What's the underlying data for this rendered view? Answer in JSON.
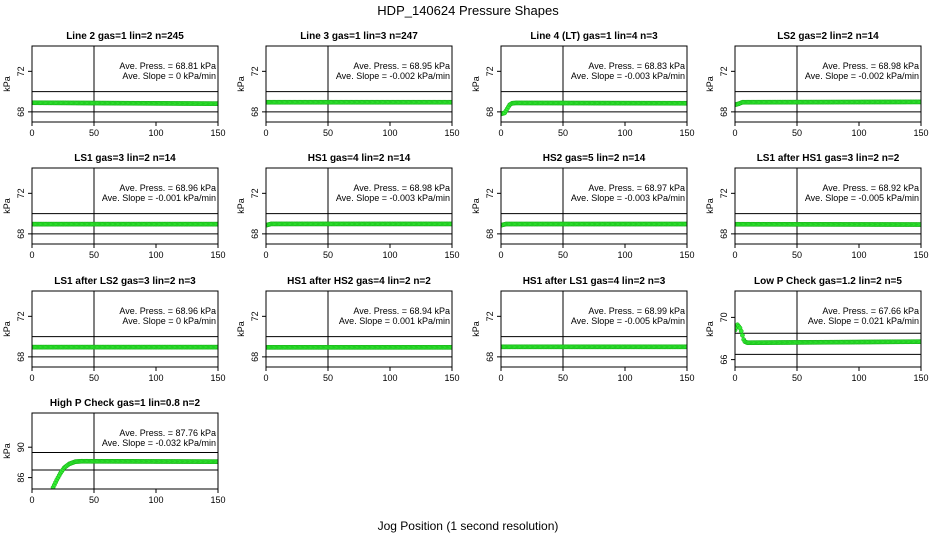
{
  "figure": {
    "title": "HDP_140624  Pressure Shapes",
    "xlabel": "Jog Position (1 second resolution)"
  },
  "chart_data": [
    {
      "type": "line",
      "title": "Line 2 gas=1 lin=2 n=245",
      "ylabel": "kPa",
      "xlim": [
        0,
        150
      ],
      "ylim": [
        67,
        74.5
      ],
      "xticks": [
        0,
        50,
        100,
        150
      ],
      "yticks": [
        68,
        72
      ],
      "ref_h": [
        68,
        70
      ],
      "ref_v": 50,
      "annotation": [
        "Ave. Press. = 68.81 kPa",
        "Ave. Slope = 0 kPa/min"
      ],
      "x": [
        0,
        150
      ],
      "y": [
        68.9,
        68.81
      ]
    },
    {
      "type": "line",
      "title": "Line 3 gas=1 lin=3 n=247",
      "ylabel": "kPa",
      "xlim": [
        0,
        150
      ],
      "ylim": [
        67,
        74.5
      ],
      "xticks": [
        0,
        50,
        100,
        150
      ],
      "yticks": [
        68,
        72
      ],
      "ref_h": [
        68,
        70
      ],
      "ref_v": 50,
      "annotation": [
        "Ave. Press. = 68.95 kPa",
        "Ave. Slope = -0.002 kPa/min"
      ],
      "x": [
        0,
        150
      ],
      "y": [
        68.95,
        68.95
      ]
    },
    {
      "type": "line",
      "title": "Line 4 (LT) gas=1 lin=4 n=3",
      "ylabel": "kPa",
      "xlim": [
        0,
        150
      ],
      "ylim": [
        67,
        74.5
      ],
      "xticks": [
        0,
        50,
        100,
        150
      ],
      "yticks": [
        68,
        72
      ],
      "ref_h": [
        68,
        70
      ],
      "ref_v": 50,
      "annotation": [
        "Ave. Press. = 68.83 kPa",
        "Ave. Slope = -0.003 kPa/min"
      ],
      "x": [
        0,
        3,
        5,
        7,
        9,
        12,
        150
      ],
      "y": [
        67.8,
        67.9,
        68.3,
        68.7,
        68.85,
        68.88,
        68.85
      ]
    },
    {
      "type": "line",
      "title": "LS2 gas=2 lin=2 n=14",
      "ylabel": "kPa",
      "xlim": [
        0,
        150
      ],
      "ylim": [
        67,
        74.5
      ],
      "xticks": [
        0,
        50,
        100,
        150
      ],
      "yticks": [
        68,
        72
      ],
      "ref_h": [
        68,
        70
      ],
      "ref_v": 50,
      "annotation": [
        "Ave. Press. = 68.98 kPa",
        "Ave. Slope = -0.002 kPa/min"
      ],
      "x": [
        0,
        3,
        6,
        150
      ],
      "y": [
        68.7,
        68.8,
        68.95,
        68.98
      ]
    },
    {
      "type": "line",
      "title": "LS1 gas=3 lin=2 n=14",
      "ylabel": "kPa",
      "xlim": [
        0,
        150
      ],
      "ylim": [
        67,
        74.5
      ],
      "xticks": [
        0,
        50,
        100,
        150
      ],
      "yticks": [
        68,
        72
      ],
      "ref_h": [
        68,
        70
      ],
      "ref_v": 50,
      "annotation": [
        "Ave. Press. = 68.96 kPa",
        "Ave. Slope = -0.001 kPa/min"
      ],
      "x": [
        0,
        150
      ],
      "y": [
        68.96,
        68.96
      ]
    },
    {
      "type": "line",
      "title": "HS1 gas=4 lin=2 n=14",
      "ylabel": "kPa",
      "xlim": [
        0,
        150
      ],
      "ylim": [
        67,
        74.5
      ],
      "xticks": [
        0,
        50,
        100,
        150
      ],
      "yticks": [
        68,
        72
      ],
      "ref_h": [
        68,
        70
      ],
      "ref_v": 50,
      "annotation": [
        "Ave. Press. = 68.98 kPa",
        "Ave. Slope = -0.003 kPa/min"
      ],
      "x": [
        0,
        4,
        150
      ],
      "y": [
        68.85,
        68.98,
        68.98
      ]
    },
    {
      "type": "line",
      "title": "HS2 gas=5 lin=2 n=14",
      "ylabel": "kPa",
      "xlim": [
        0,
        150
      ],
      "ylim": [
        67,
        74.5
      ],
      "xticks": [
        0,
        50,
        100,
        150
      ],
      "yticks": [
        68,
        72
      ],
      "ref_h": [
        68,
        70
      ],
      "ref_v": 50,
      "annotation": [
        "Ave. Press. = 68.97 kPa",
        "Ave. Slope = -0.003 kPa/min"
      ],
      "x": [
        0,
        4,
        150
      ],
      "y": [
        68.85,
        68.97,
        68.97
      ]
    },
    {
      "type": "line",
      "title": "LS1 after HS1 gas=3 lin=2 n=2",
      "ylabel": "kPa",
      "xlim": [
        0,
        150
      ],
      "ylim": [
        67,
        74.5
      ],
      "xticks": [
        0,
        50,
        100,
        150
      ],
      "yticks": [
        68,
        72
      ],
      "ref_h": [
        68,
        70
      ],
      "ref_v": 50,
      "annotation": [
        "Ave. Press. = 68.92 kPa",
        "Ave. Slope = -0.005 kPa/min"
      ],
      "x": [
        0,
        150
      ],
      "y": [
        68.95,
        68.92
      ]
    },
    {
      "type": "line",
      "title": "LS1 after LS2 gas=3 lin=2 n=3",
      "ylabel": "kPa",
      "xlim": [
        0,
        150
      ],
      "ylim": [
        67,
        74.5
      ],
      "xticks": [
        0,
        50,
        100,
        150
      ],
      "yticks": [
        68,
        72
      ],
      "ref_h": [
        68,
        70
      ],
      "ref_v": 50,
      "annotation": [
        "Ave. Press. = 68.96 kPa",
        "Ave. Slope = 0 kPa/min"
      ],
      "x": [
        0,
        150
      ],
      "y": [
        68.96,
        68.96
      ]
    },
    {
      "type": "line",
      "title": "HS1 after HS2 gas=4 lin=2 n=2",
      "ylabel": "kPa",
      "xlim": [
        0,
        150
      ],
      "ylim": [
        67,
        74.5
      ],
      "xticks": [
        0,
        50,
        100,
        150
      ],
      "yticks": [
        68,
        72
      ],
      "ref_h": [
        68,
        70
      ],
      "ref_v": 50,
      "annotation": [
        "Ave. Press. = 68.94 kPa",
        "Ave. Slope = 0.001 kPa/min"
      ],
      "x": [
        0,
        150
      ],
      "y": [
        68.94,
        68.94
      ]
    },
    {
      "type": "line",
      "title": "HS1 after LS1 gas=4 lin=2 n=3",
      "ylabel": "kPa",
      "xlim": [
        0,
        150
      ],
      "ylim": [
        67,
        74.5
      ],
      "xticks": [
        0,
        50,
        100,
        150
      ],
      "yticks": [
        68,
        72
      ],
      "ref_h": [
        68,
        70
      ],
      "ref_v": 50,
      "annotation": [
        "Ave. Press. = 68.99 kPa",
        "Ave. Slope = -0.005 kPa/min"
      ],
      "x": [
        0,
        150
      ],
      "y": [
        68.99,
        68.99
      ]
    },
    {
      "type": "line",
      "title": "Low P Check gas=1.2 lin=2 n=5",
      "ylabel": "kPa",
      "xlim": [
        0,
        150
      ],
      "ylim": [
        65.3,
        72.5
      ],
      "xticks": [
        0,
        50,
        100,
        150
      ],
      "yticks": [
        66,
        70
      ],
      "ref_h": [
        66.5,
        68.5
      ],
      "ref_v": 50,
      "annotation": [
        "Ave. Press. = 67.66 kPa",
        "Ave. Slope = 0.021 kPa/min"
      ],
      "x": [
        0,
        2,
        4,
        5,
        6,
        7,
        8,
        10,
        150
      ],
      "y": [
        68.8,
        69.3,
        69.0,
        68.7,
        68.3,
        67.9,
        67.7,
        67.6,
        67.7
      ]
    },
    {
      "type": "line",
      "title": "High P Check gas=1 lin=0.8 n=2",
      "ylabel": "kPa",
      "xlim": [
        0,
        150
      ],
      "ylim": [
        84.5,
        94.5
      ],
      "xticks": [
        0,
        50,
        100,
        150
      ],
      "yticks": [
        86,
        90
      ],
      "ref_h": [
        87,
        89.3
      ],
      "ref_v": 50,
      "annotation": [
        "Ave. Press. = 87.76 kPa",
        "Ave. Slope = -0.032 kPa/min"
      ],
      "x": [
        17,
        20,
        23,
        26,
        30,
        35,
        40,
        150
      ],
      "y": [
        84.7,
        85.7,
        86.6,
        87.3,
        87.8,
        88.1,
        88.15,
        88.1
      ]
    }
  ]
}
